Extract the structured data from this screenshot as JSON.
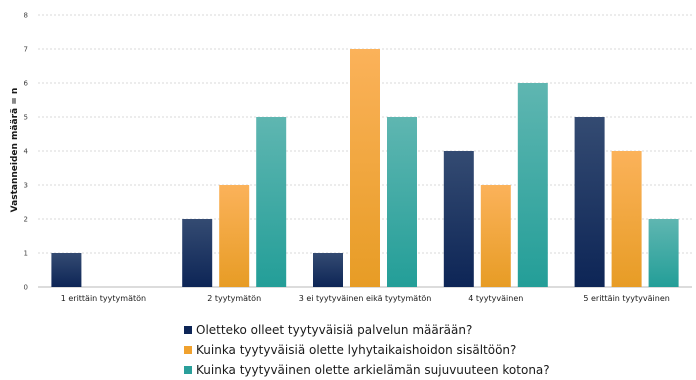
{
  "chart_data": {
    "type": "bar",
    "ylabel": "Vastanneiden määrä = n",
    "xlabel": "",
    "ylim": [
      0,
      8
    ],
    "yticks": [
      "0",
      "1",
      "2",
      "3",
      "4",
      "5",
      "6",
      "7",
      "8"
    ],
    "categories": [
      "1 erittäin tyytymätön",
      "2 tyytymätön",
      "3 ei tyytyväinen eikä tyytymätön",
      "4 tyytyväinen",
      "5 erittäin tyytyväinen"
    ],
    "series": [
      {
        "name": "Oletteko olleet tyytyväisiä palvelun määrään?",
        "color": "#0d2556",
        "gradient": [
          "#344b72",
          "#0d2556"
        ],
        "values": [
          1,
          2,
          1,
          4,
          5
        ]
      },
      {
        "name": "Kuinka tyytyväisiä olette lyhytaikaishoidon sisältöön?",
        "color": "#f0a12e",
        "gradient": [
          "#fbb25a",
          "#e79c25"
        ],
        "values": [
          0,
          3,
          7,
          3,
          4
        ]
      },
      {
        "name": "Kuinka tyytyväinen olette arkielämän sujuvuuteen kotona?",
        "color": "#2a9f9a",
        "gradient": [
          "#5fb6b1",
          "#239e98"
        ],
        "values": [
          0,
          5,
          5,
          6,
          2
        ]
      }
    ],
    "grid": true,
    "legend_position": "bottom"
  }
}
